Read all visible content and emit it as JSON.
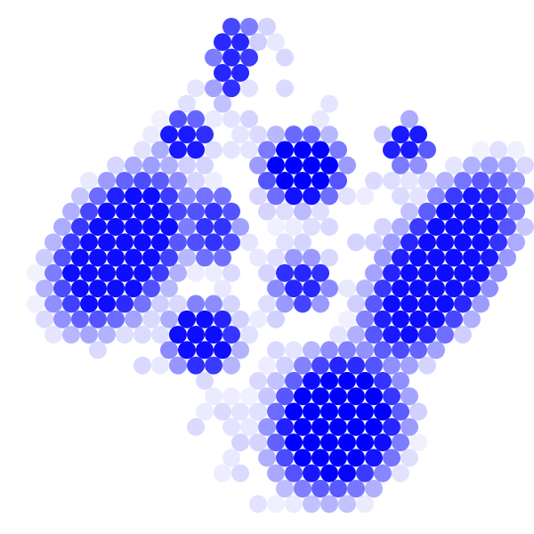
{
  "palette": {
    "background": "#ffffff",
    "dot": "#0000ff"
  },
  "pattern": {
    "description": "",
    "clusters": [
      {
        "id": "top-small",
        "intensity": 0.85
      },
      {
        "id": "left-band",
        "intensity": 0.95
      },
      {
        "id": "upper-center",
        "intensity": 1.0
      },
      {
        "id": "center-small",
        "intensity": 0.85
      },
      {
        "id": "lower-left-small",
        "intensity": 0.95
      },
      {
        "id": "right-band",
        "intensity": 0.95
      },
      {
        "id": "bottom-block",
        "intensity": 1.0
      },
      {
        "id": "upper-right-small",
        "intensity": 0.9
      },
      {
        "id": "upper-left-small",
        "intensity": 0.9
      },
      {
        "id": "mid-left-small",
        "intensity": 0.8
      }
    ]
  }
}
